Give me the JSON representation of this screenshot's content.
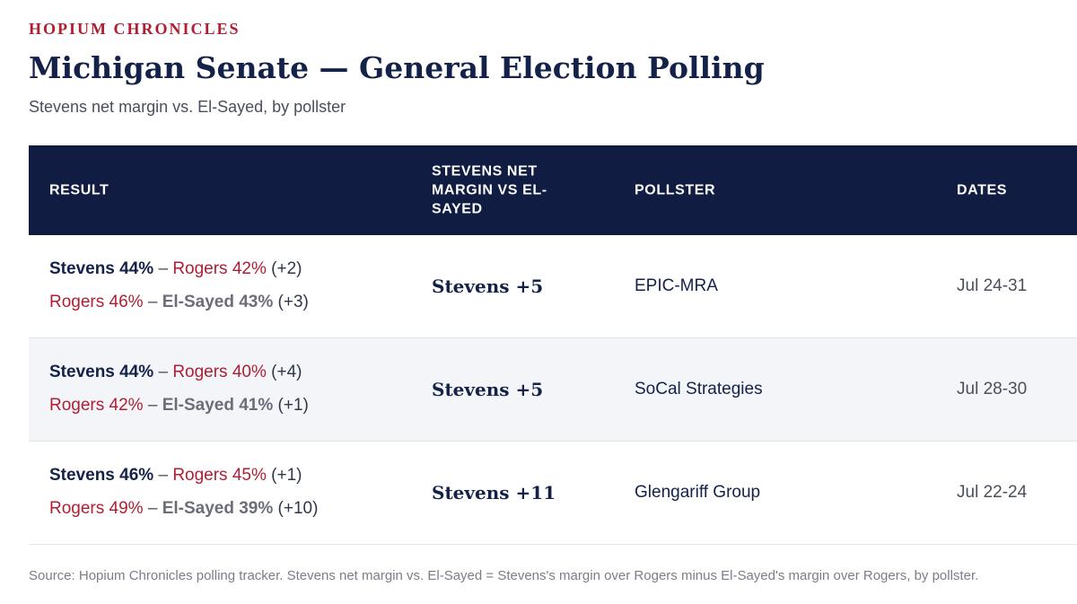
{
  "header": {
    "brand": "HOPIUM CHRONICLES",
    "title": "Michigan Senate — General Election Polling",
    "subtitle": "Stevens net margin vs. El-Sayed, by pollster"
  },
  "table": {
    "columns": [
      "RESULT",
      "STEVENS NET MARGIN VS EL-SAYED",
      "POLLSTER",
      "DATES"
    ],
    "rows": [
      {
        "line1": {
          "a": "Stevens 44%",
          "sep": " – ",
          "b": "Rogers 42%",
          "diff": " (+2)"
        },
        "line2": {
          "a": "Rogers 46%",
          "sep": " – ",
          "b": "El-Sayed 43%",
          "diff": " (+3)"
        },
        "margin": "Stevens +5",
        "pollster": "EPIC-MRA",
        "dates": "Jul 24-31"
      },
      {
        "line1": {
          "a": "Stevens 44%",
          "sep": " – ",
          "b": "Rogers 40%",
          "diff": " (+4)"
        },
        "line2": {
          "a": "Rogers 42%",
          "sep": " – ",
          "b": "El-Sayed 41%",
          "diff": " (+1)"
        },
        "margin": "Stevens +5",
        "pollster": "SoCal Strategies",
        "dates": "Jul 28-30"
      },
      {
        "line1": {
          "a": "Stevens 46%",
          "sep": " – ",
          "b": "Rogers 45%",
          "diff": " (+1)"
        },
        "line2": {
          "a": "Rogers 49%",
          "sep": " – ",
          "b": "El-Sayed 39%",
          "diff": " (+10)"
        },
        "margin": "Stevens +11",
        "pollster": "Glengariff Group",
        "dates": "Jul 22-24"
      }
    ]
  },
  "footnote": "Source: Hopium Chronicles polling tracker. Stevens net margin vs. El-Sayed = Stevens's margin over Rogers minus El-Sayed's margin over Rogers, by pollster.",
  "colors": {
    "brand_red": "#b01e33",
    "navy": "#101c42",
    "gray": "#6b6e78",
    "alt_row": "#f3f5f8"
  }
}
